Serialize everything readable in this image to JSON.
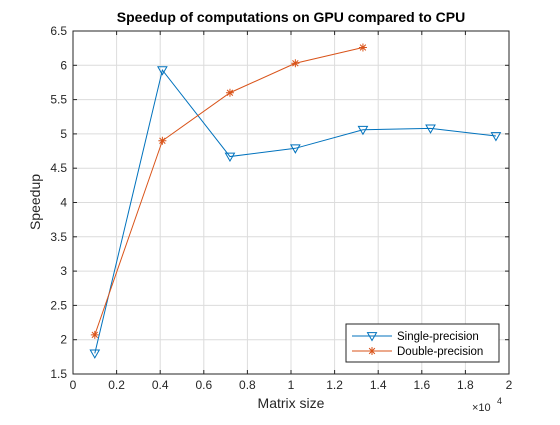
{
  "chart_data": {
    "type": "line",
    "title": "Speedup of computations on GPU compared to CPU",
    "xlabel": "Matrix size",
    "ylabel": "Speedup",
    "x_exponent": {
      "base": "×10",
      "power": "4"
    },
    "xlim": [
      0,
      20000
    ],
    "ylim": [
      1.5,
      6.5
    ],
    "x_ticks": [
      0,
      2000,
      4000,
      6000,
      8000,
      10000,
      12000,
      14000,
      16000,
      18000,
      20000
    ],
    "x_tick_labels": [
      "0",
      "0.2",
      "0.4",
      "0.6",
      "0.8",
      "1",
      "1.2",
      "1.4",
      "1.6",
      "1.8",
      "2"
    ],
    "y_ticks": [
      1.5,
      2,
      2.5,
      3,
      3.5,
      4,
      4.5,
      5,
      5.5,
      6,
      6.5
    ],
    "y_tick_labels": [
      "1.5",
      "2",
      "2.5",
      "3",
      "3.5",
      "4",
      "4.5",
      "5",
      "5.5",
      "6",
      "6.5"
    ],
    "grid": true,
    "legend_position": "bottom-right",
    "series": [
      {
        "name": "Single-precision",
        "color": "#0072BD",
        "marker": "triangle-down",
        "x": [
          1000,
          4100,
          7200,
          10200,
          13300,
          16400,
          19400
        ],
        "y": [
          1.8,
          5.93,
          4.67,
          4.79,
          5.06,
          5.08,
          4.97
        ]
      },
      {
        "name": "Double-precision",
        "color": "#D95319",
        "marker": "asterisk",
        "x": [
          1000,
          4100,
          7200,
          10200,
          13300
        ],
        "y": [
          2.07,
          4.9,
          5.6,
          6.03,
          6.26
        ]
      }
    ]
  }
}
